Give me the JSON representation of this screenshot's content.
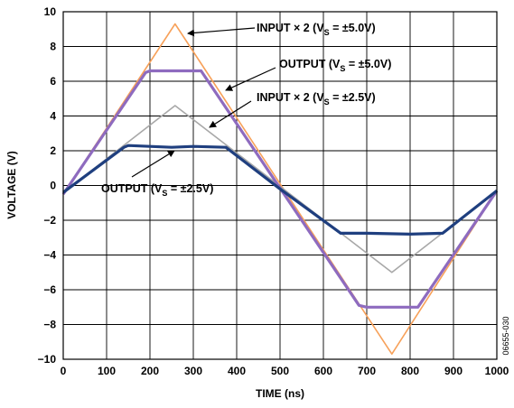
{
  "chart_data": {
    "type": "line",
    "xlabel": "TIME (ns)",
    "ylabel": "VOLTAGE (V)",
    "xlim": [
      0,
      1000
    ],
    "ylim": [
      -10,
      10
    ],
    "x_ticks": [
      0,
      100,
      200,
      300,
      400,
      500,
      600,
      700,
      800,
      900,
      1000
    ],
    "y_ticks": [
      10,
      8,
      6,
      4,
      2,
      0,
      -2,
      -4,
      -6,
      -8,
      -10
    ],
    "y_tick_labels": [
      "10",
      "8",
      "6",
      "4",
      "2",
      "0",
      "−2",
      "−4",
      "−6",
      "−8",
      "−10"
    ],
    "grid": true,
    "figure_code": "06655-030",
    "series": [
      {
        "name": "INPUT × 2 (VS = ±5.0V)",
        "color": "#f7a15a",
        "x": [
          0,
          258,
          758,
          1000
        ],
        "y": [
          -0.5,
          9.3,
          -9.7,
          -0.3
        ]
      },
      {
        "name": "INPUT × 2 (VS = ±2.5V)",
        "color": "#a8a8a8",
        "x": [
          0,
          258,
          758,
          1000
        ],
        "y": [
          -0.4,
          4.6,
          -5.0,
          -0.3
        ]
      },
      {
        "name": "OUTPUT (VS = ±5.0V)",
        "color": "#8e6bbf",
        "x": [
          0,
          190,
          200,
          300,
          318,
          682,
          700,
          800,
          818,
          1000
        ],
        "y": [
          -0.5,
          6.5,
          6.6,
          6.6,
          6.6,
          -6.9,
          -7.0,
          -7.0,
          -7.0,
          -0.3
        ]
      },
      {
        "name": "OUTPUT (VS = ±2.5V)",
        "color": "#1f3f7f",
        "x": [
          0,
          140,
          150,
          250,
          300,
          375,
          500,
          640,
          700,
          800,
          875,
          1000
        ],
        "y": [
          -0.4,
          2.2,
          2.3,
          2.2,
          2.25,
          2.2,
          -0.2,
          -2.75,
          -2.75,
          -2.8,
          -2.75,
          -0.3
        ]
      }
    ],
    "annotations": [
      {
        "main": "INPUT × 2 (V",
        "sub": "S",
        "rest": " = ±5.0V)"
      },
      {
        "main": "OUTPUT (V",
        "sub": "S",
        "rest": " = ±5.0V)"
      },
      {
        "main": "INPUT × 2 (V",
        "sub": "S",
        "rest": " = ±2.5V)"
      },
      {
        "main": "OUTPUT (V",
        "sub": "S",
        "rest": " = ±2.5V)"
      }
    ]
  }
}
